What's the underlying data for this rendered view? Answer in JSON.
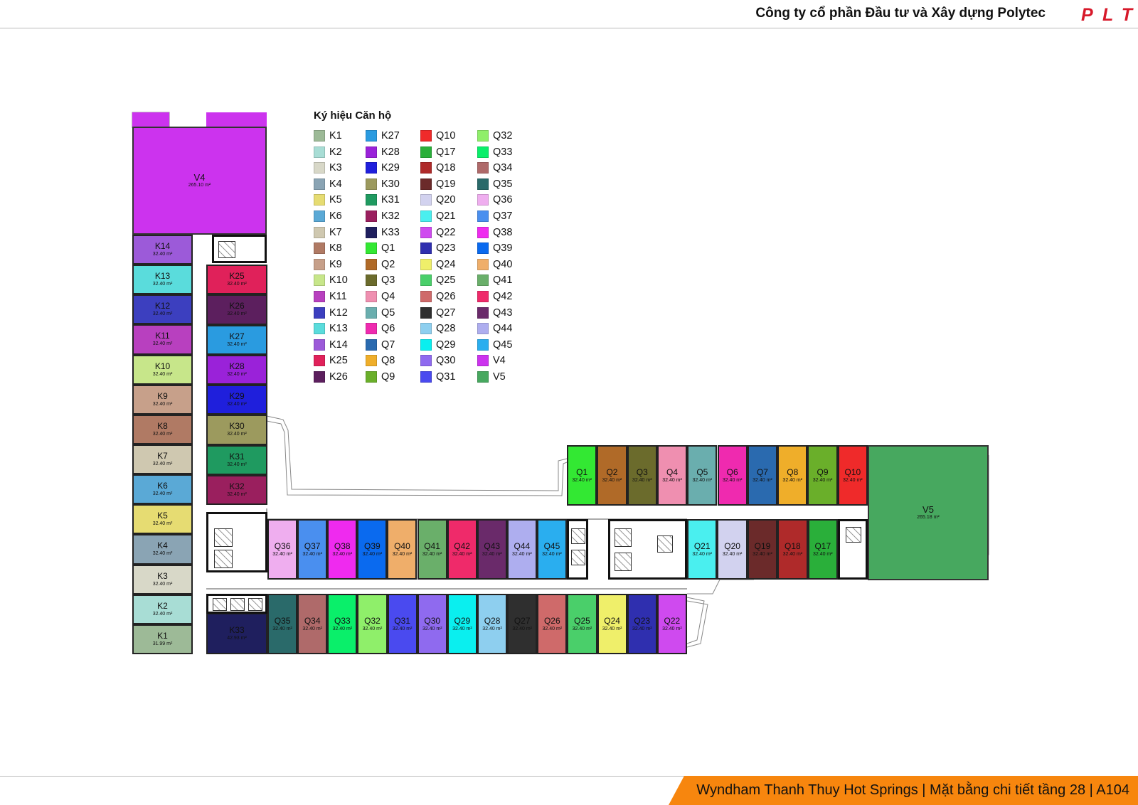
{
  "header": {
    "title": "Công ty cổ phần Đầu tư và Xây dựng Polytec",
    "logo_text": "PLT",
    "logo_color": "#d7192a"
  },
  "footer": {
    "text": "Wyndham Thanh Thuy Hot Springs | Mặt bằng chi tiết tầng 28 | A104",
    "color": "#f7860e"
  },
  "legend": {
    "title": "Ký hiệu Căn hộ",
    "columns": [
      [
        {
          "label": "K1",
          "color": "#9dba97"
        },
        {
          "label": "K2",
          "color": "#a8ddd5"
        },
        {
          "label": "K3",
          "color": "#d8d8c8"
        },
        {
          "label": "K4",
          "color": "#8aa4b4"
        },
        {
          "label": "K5",
          "color": "#e6dc72"
        },
        {
          "label": "K6",
          "color": "#5aa9d6"
        },
        {
          "label": "K7",
          "color": "#cfc8b0"
        },
        {
          "label": "K8",
          "color": "#b07a64"
        },
        {
          "label": "K9",
          "color": "#c7a08a"
        },
        {
          "label": "K10",
          "color": "#c7e68a"
        },
        {
          "label": "K11",
          "color": "#b840bf"
        },
        {
          "label": "K12",
          "color": "#3c3fbf"
        },
        {
          "label": "K13",
          "color": "#5adcdc"
        },
        {
          "label": "K14",
          "color": "#9c5ad9"
        },
        {
          "label": "K25",
          "color": "#e0215a"
        },
        {
          "label": "K26",
          "color": "#5c1f5e"
        }
      ],
      [
        {
          "label": "K27",
          "color": "#2a9be0"
        },
        {
          "label": "K28",
          "color": "#9a22d9"
        },
        {
          "label": "K29",
          "color": "#1f1fdc"
        },
        {
          "label": "K30",
          "color": "#9c9a5e"
        },
        {
          "label": "K31",
          "color": "#1f9a60"
        },
        {
          "label": "K32",
          "color": "#9a1f5e"
        },
        {
          "label": "K33",
          "color": "#1f1f5e"
        },
        {
          "label": "Q1",
          "color": "#33e833"
        },
        {
          "label": "Q2",
          "color": "#b06a28"
        },
        {
          "label": "Q3",
          "color": "#6b6b2c"
        },
        {
          "label": "Q4",
          "color": "#ef8fb0"
        },
        {
          "label": "Q5",
          "color": "#6aaeae"
        },
        {
          "label": "Q6",
          "color": "#ef2aaf"
        },
        {
          "label": "Q7",
          "color": "#2a6aaf"
        },
        {
          "label": "Q8",
          "color": "#efae2a"
        },
        {
          "label": "Q9",
          "color": "#6aaf2a"
        }
      ],
      [
        {
          "label": "Q10",
          "color": "#ef2a2a"
        },
        {
          "label": "Q17",
          "color": "#2aaf3a"
        },
        {
          "label": "Q18",
          "color": "#af2a2a"
        },
        {
          "label": "Q19",
          "color": "#6b2a2a"
        },
        {
          "label": "Q20",
          "color": "#d2d2ef"
        },
        {
          "label": "Q21",
          "color": "#4aefef"
        },
        {
          "label": "Q22",
          "color": "#cf4aef"
        },
        {
          "label": "Q23",
          "color": "#2f2faf"
        },
        {
          "label": "Q24",
          "color": "#efef6a"
        },
        {
          "label": "Q25",
          "color": "#4acf6a"
        },
        {
          "label": "Q26",
          "color": "#cf6a6a"
        },
        {
          "label": "Q27",
          "color": "#2f2f2f"
        },
        {
          "label": "Q28",
          "color": "#8ecfef"
        },
        {
          "label": "Q29",
          "color": "#0aefef"
        },
        {
          "label": "Q30",
          "color": "#8f6aef"
        },
        {
          "label": "Q31",
          "color": "#4a4aef"
        }
      ],
      [
        {
          "label": "Q32",
          "color": "#8fef6a"
        },
        {
          "label": "Q33",
          "color": "#0aef6a"
        },
        {
          "label": "Q34",
          "color": "#af6a6a"
        },
        {
          "label": "Q35",
          "color": "#2a6a6a"
        },
        {
          "label": "Q36",
          "color": "#efaeef"
        },
        {
          "label": "Q37",
          "color": "#4a8fef"
        },
        {
          "label": "Q38",
          "color": "#ef2aef"
        },
        {
          "label": "Q39",
          "color": "#0a6aef"
        },
        {
          "label": "Q40",
          "color": "#efae6a"
        },
        {
          "label": "Q41",
          "color": "#6aaf6a"
        },
        {
          "label": "Q42",
          "color": "#ef2a6a"
        },
        {
          "label": "Q43",
          "color": "#6a2a6a"
        },
        {
          "label": "Q44",
          "color": "#aeaeef"
        },
        {
          "label": "Q45",
          "color": "#2aaeef"
        },
        {
          "label": "V4",
          "color": "#cc33ee"
        },
        {
          "label": "V5",
          "color": "#47a85f"
        }
      ]
    ]
  },
  "units": [
    {
      "label": "V4",
      "area": "265.10 m²"
    },
    {
      "label": "V5",
      "area": "265.18 m²"
    },
    {
      "label": "K14",
      "area": "32.40 m²"
    },
    {
      "label": "K13",
      "area": "32.40 m²"
    },
    {
      "label": "K12",
      "area": "32.40 m²"
    },
    {
      "label": "K11",
      "area": "32.40 m²"
    },
    {
      "label": "K10",
      "area": "32.40 m²"
    },
    {
      "label": "K9",
      "area": "32.40 m²"
    },
    {
      "label": "K8",
      "area": "32.40 m²"
    },
    {
      "label": "K7",
      "area": "32.40 m²"
    },
    {
      "label": "K6",
      "area": "32.40 m²"
    },
    {
      "label": "K5",
      "area": "32.40 m²"
    },
    {
      "label": "K4",
      "area": "32.40 m²"
    },
    {
      "label": "K3",
      "area": "32.40 m²"
    },
    {
      "label": "K2",
      "area": "32.40 m²"
    },
    {
      "label": "K1",
      "area": "31.99 m²"
    },
    {
      "label": "K25",
      "area": "32.40 m²"
    },
    {
      "label": "K26",
      "area": "32.40 m²"
    },
    {
      "label": "K27",
      "area": "32.40 m²"
    },
    {
      "label": "K28",
      "area": "32.40 m²"
    },
    {
      "label": "K29",
      "area": "32.40 m²"
    },
    {
      "label": "K30",
      "area": "32.40 m²"
    },
    {
      "label": "K31",
      "area": "32.40 m²"
    },
    {
      "label": "K32",
      "area": "32.40 m²"
    },
    {
      "label": "K33",
      "area": "42.93 m²"
    },
    {
      "label": "Q36",
      "area": "32.40 m²"
    },
    {
      "label": "Q37",
      "area": "32.40 m²"
    },
    {
      "label": "Q38",
      "area": "32.40 m²"
    },
    {
      "label": "Q39",
      "area": "32.40 m²"
    },
    {
      "label": "Q40",
      "area": "32.40 m²"
    },
    {
      "label": "Q41",
      "area": "32.40 m²"
    },
    {
      "label": "Q42",
      "area": "32.40 m²"
    },
    {
      "label": "Q43",
      "area": "32.40 m²"
    },
    {
      "label": "Q44",
      "area": "32.40 m²"
    },
    {
      "label": "Q45",
      "area": "32.40 m²"
    },
    {
      "label": "Q35",
      "area": "32.40 m²"
    },
    {
      "label": "Q34",
      "area": "32.40 m²"
    },
    {
      "label": "Q33",
      "area": "32.40 m²"
    },
    {
      "label": "Q32",
      "area": "32.40 m²"
    },
    {
      "label": "Q31",
      "area": "32.40 m²"
    },
    {
      "label": "Q30",
      "area": "32.40 m²"
    },
    {
      "label": "Q29",
      "area": "32.40 m²"
    },
    {
      "label": "Q28",
      "area": "32.40 m²"
    },
    {
      "label": "Q27",
      "area": "32.40 m²"
    },
    {
      "label": "Q26",
      "area": "32.40 m²"
    },
    {
      "label": "Q25",
      "area": "32.40 m²"
    },
    {
      "label": "Q24",
      "area": "32.40 m²"
    },
    {
      "label": "Q23",
      "area": "32.40 m²"
    },
    {
      "label": "Q22",
      "area": "32.40 m²"
    },
    {
      "label": "Q1",
      "area": "32.40 m²"
    },
    {
      "label": "Q2",
      "area": "32.40 m²"
    },
    {
      "label": "Q3",
      "area": "32.40 m²"
    },
    {
      "label": "Q4",
      "area": "32.40 m²"
    },
    {
      "label": "Q5",
      "area": "32.40 m²"
    },
    {
      "label": "Q6",
      "area": "32.40 m²"
    },
    {
      "label": "Q7",
      "area": "32.40 m²"
    },
    {
      "label": "Q8",
      "area": "32.40 m²"
    },
    {
      "label": "Q9",
      "area": "32.40 m²"
    },
    {
      "label": "Q10",
      "area": "32.40 m²"
    },
    {
      "label": "Q21",
      "area": "32.40 m²"
    },
    {
      "label": "Q20",
      "area": "32.40 m²"
    },
    {
      "label": "Q19",
      "area": "32.40 m²"
    },
    {
      "label": "Q18",
      "area": "32.40 m²"
    },
    {
      "label": "Q17",
      "area": "32.40 m²"
    }
  ]
}
